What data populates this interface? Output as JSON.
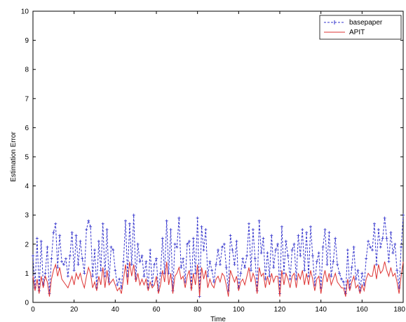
{
  "chart_data": {
    "type": "line",
    "title": "",
    "xlabel": "Time",
    "ylabel": "Estimation Error",
    "xlim": [
      0,
      180
    ],
    "ylim": [
      0,
      10
    ],
    "x_ticks": [
      "0",
      "20",
      "40",
      "60",
      "80",
      "100",
      "120",
      "140",
      "160",
      "180"
    ],
    "y_ticks": [
      "0",
      "1",
      "2",
      "3",
      "4",
      "5",
      "6",
      "7",
      "8",
      "9",
      "10"
    ],
    "grid": false,
    "legend_position": "top-right",
    "series": [
      {
        "name": "basepaper",
        "color": "#3333cc",
        "line_style": "dashed",
        "marker": "plus",
        "x": [
          0,
          1,
          2,
          3,
          4,
          5,
          6,
          7,
          8,
          9,
          10,
          11,
          12,
          13,
          14,
          15,
          16,
          17,
          18,
          19,
          20,
          21,
          22,
          23,
          24,
          25,
          26,
          27,
          28,
          29,
          30,
          31,
          32,
          33,
          34,
          35,
          36,
          37,
          38,
          39,
          40,
          41,
          42,
          43,
          44,
          45,
          46,
          47,
          48,
          49,
          50,
          51,
          52,
          53,
          54,
          55,
          56,
          57,
          58,
          59,
          60,
          61,
          62,
          63,
          64,
          65,
          66,
          67,
          68,
          69,
          70,
          71,
          72,
          73,
          74,
          75,
          76,
          77,
          78,
          79,
          80,
          81,
          82,
          83,
          84,
          85,
          86,
          87,
          88,
          89,
          90,
          91,
          92,
          93,
          94,
          95,
          96,
          97,
          98,
          99,
          100,
          101,
          102,
          103,
          104,
          105,
          106,
          107,
          108,
          109,
          110,
          111,
          112,
          113,
          114,
          115,
          116,
          117,
          118,
          119,
          120,
          121,
          122,
          123,
          124,
          125,
          126,
          127,
          128,
          129,
          130,
          131,
          132,
          133,
          134,
          135,
          136,
          137,
          138,
          139,
          140,
          141,
          142,
          143,
          144,
          145,
          146,
          147,
          148,
          149,
          150,
          151,
          152,
          153,
          154,
          155,
          156,
          157,
          158,
          159,
          160,
          161,
          162,
          163,
          164,
          165,
          166,
          167,
          168,
          169,
          170,
          171,
          172,
          173,
          174,
          175,
          176,
          177,
          178,
          179,
          180
        ],
        "y": [
          1.6,
          0.5,
          2.2,
          0.4,
          2.1,
          0.6,
          1.0,
          1.9,
          0.3,
          1.5,
          2.4,
          2.7,
          1.2,
          2.3,
          1.4,
          1.3,
          1.5,
          0.9,
          1.6,
          2.4,
          1.1,
          2.3,
          1.3,
          2.1,
          1.5,
          1.0,
          2.5,
          2.8,
          2.6,
          0.9,
          1.8,
          0.5,
          2.1,
          1.1,
          2.7,
          0.9,
          2.5,
          0.7,
          1.9,
          1.8,
          1.1,
          0.6,
          0.8,
          0.5,
          1.4,
          2.8,
          0.9,
          2.7,
          1.3,
          3.0,
          0.8,
          2.0,
          1.4,
          1.6,
          0.9,
          1.4,
          0.5,
          1.8,
          0.6,
          1.3,
          1.5,
          0.4,
          1.0,
          2.2,
          1.0,
          2.8,
          1.0,
          2.5,
          0.4,
          2.0,
          1.9,
          2.9,
          1.2,
          1.5,
          0.7,
          2.0,
          2.1,
          0.5,
          2.2,
          1.0,
          2.9,
          0.2,
          2.6,
          1.8,
          2.5,
          0.9,
          1.4,
          1.1,
          0.7,
          1.3,
          1.8,
          1.3,
          1.9,
          2.0,
          1.2,
          0.4,
          2.3,
          1.8,
          1.3,
          2.1,
          0.5,
          1.0,
          1.5,
          1.2,
          1.6,
          2.7,
          1.1,
          2.5,
          1.5,
          0.4,
          2.8,
          1.7,
          2.2,
          0.8,
          1.7,
          0.9,
          2.3,
          1.2,
          1.8,
          2.0,
          0.3,
          2.6,
          1.0,
          2.1,
          1.6,
          0.8,
          1.8,
          2.0,
          0.8,
          2.3,
          1.6,
          2.5,
          1.1,
          2.4,
          0.9,
          2.6,
          1.6,
          0.6,
          1.4,
          1.7,
          0.5,
          1.9,
          2.5,
          1.3,
          2.4,
          0.9,
          1.4,
          2.2,
          1.3,
          1.0,
          0.8,
          0.7,
          0.3,
          1.8,
          0.5,
          1.2,
          1.9,
          0.8,
          1.1,
          0.4,
          1.0,
          0.6,
          1.5,
          2.1,
          1.9,
          1.8,
          2.7,
          1.3,
          2.5,
          1.9,
          2.2,
          2.9,
          2.2,
          1.4,
          2.4,
          1.7,
          2.0,
          1.1,
          0.5,
          1.9,
          3.0
        ],
        "note": "values estimated from the plotted curve"
      },
      {
        "name": "APIT",
        "color": "#dd3333",
        "line_style": "solid",
        "marker": "none",
        "x": [
          0,
          1,
          2,
          3,
          4,
          5,
          6,
          7,
          8,
          9,
          10,
          11,
          12,
          13,
          14,
          15,
          16,
          17,
          18,
          19,
          20,
          21,
          22,
          23,
          24,
          25,
          26,
          27,
          28,
          29,
          30,
          31,
          32,
          33,
          34,
          35,
          36,
          37,
          38,
          39,
          40,
          41,
          42,
          43,
          44,
          45,
          46,
          47,
          48,
          49,
          50,
          51,
          52,
          53,
          54,
          55,
          56,
          57,
          58,
          59,
          60,
          61,
          62,
          63,
          64,
          65,
          66,
          67,
          68,
          69,
          70,
          71,
          72,
          73,
          74,
          75,
          76,
          77,
          78,
          79,
          80,
          81,
          82,
          83,
          84,
          85,
          86,
          87,
          88,
          89,
          90,
          91,
          92,
          93,
          94,
          95,
          96,
          97,
          98,
          99,
          100,
          101,
          102,
          103,
          104,
          105,
          106,
          107,
          108,
          109,
          110,
          111,
          112,
          113,
          114,
          115,
          116,
          117,
          118,
          119,
          120,
          121,
          122,
          123,
          124,
          125,
          126,
          127,
          128,
          129,
          130,
          131,
          132,
          133,
          134,
          135,
          136,
          137,
          138,
          139,
          140,
          141,
          142,
          143,
          144,
          145,
          146,
          147,
          148,
          149,
          150,
          151,
          152,
          153,
          154,
          155,
          156,
          157,
          158,
          159,
          160,
          161,
          162,
          163,
          164,
          165,
          166,
          167,
          168,
          169,
          170,
          171,
          172,
          173,
          174,
          175,
          176,
          177,
          178,
          179,
          180
        ],
        "y": [
          0.9,
          0.4,
          0.8,
          0.3,
          0.9,
          0.5,
          0.9,
          0.7,
          0.2,
          0.8,
          1.1,
          1.3,
          0.9,
          1.2,
          0.8,
          0.7,
          0.6,
          0.5,
          0.7,
          0.9,
          0.6,
          1.0,
          0.8,
          1.0,
          0.7,
          0.5,
          0.9,
          1.2,
          1.0,
          0.5,
          0.7,
          0.4,
          0.9,
          0.6,
          1.2,
          0.5,
          1.1,
          0.6,
          0.7,
          0.8,
          0.6,
          0.4,
          0.5,
          0.3,
          0.8,
          1.3,
          0.6,
          1.4,
          0.9,
          1.3,
          0.7,
          1.0,
          0.6,
          0.8,
          0.6,
          0.8,
          0.4,
          0.7,
          0.5,
          0.6,
          0.9,
          0.3,
          0.6,
          1.1,
          0.7,
          1.4,
          0.6,
          1.0,
          0.3,
          0.9,
          1.0,
          1.2,
          0.8,
          0.9,
          0.5,
          0.9,
          1.1,
          0.4,
          1.0,
          0.6,
          1.3,
          0.2,
          1.2,
          0.8,
          1.1,
          0.5,
          0.8,
          0.6,
          0.5,
          0.8,
          0.9,
          0.7,
          1.0,
          0.9,
          0.6,
          0.2,
          1.1,
          0.9,
          0.7,
          0.9,
          0.4,
          0.7,
          0.8,
          0.6,
          0.9,
          1.2,
          0.7,
          1.0,
          0.8,
          0.3,
          1.2,
          0.9,
          1.0,
          0.5,
          0.9,
          0.6,
          1.0,
          0.7,
          0.9,
          0.9,
          0.2,
          1.1,
          0.6,
          1.0,
          0.8,
          0.5,
          0.9,
          1.0,
          0.5,
          1.0,
          0.8,
          1.1,
          0.6,
          1.0,
          0.6,
          1.1,
          0.8,
          0.4,
          0.8,
          0.9,
          0.3,
          0.8,
          1.1,
          0.7,
          1.0,
          0.6,
          0.8,
          1.0,
          0.7,
          0.6,
          0.5,
          0.5,
          0.2,
          0.8,
          0.4,
          0.7,
          0.9,
          0.5,
          0.6,
          0.3,
          0.6,
          0.4,
          0.8,
          1.0,
          0.9,
          0.9,
          1.3,
          0.8,
          1.3,
          1.0,
          1.1,
          1.4,
          1.1,
          0.9,
          1.2,
          0.9,
          1.0,
          0.7,
          0.3,
          0.9,
          1.4
        ],
        "note": "values estimated from the plotted curve"
      }
    ]
  }
}
